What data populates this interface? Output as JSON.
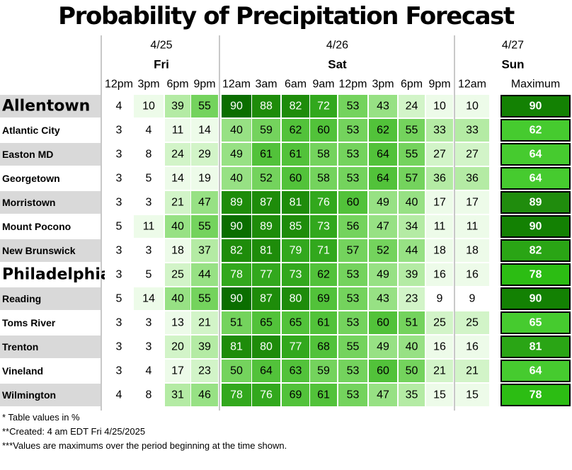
{
  "chart_data": {
    "type": "table",
    "title": "Probability of Precipitation Forecast",
    "dates": [
      {
        "date": "4/25",
        "day": "Fri",
        "span": 4
      },
      {
        "date": "4/26",
        "day": "Sat",
        "span": 8
      },
      {
        "date": "4/27",
        "day": "Sun",
        "span": 1
      }
    ],
    "times": [
      "12pm",
      "3pm",
      "6pm",
      "9pm",
      "12am",
      "3am",
      "6am",
      "9am",
      "12pm",
      "3pm",
      "6pm",
      "9pm",
      "12am"
    ],
    "max_label": "Maximum",
    "rows": [
      {
        "name": "Allentown",
        "large": true,
        "values": [
          4,
          10,
          39,
          55,
          90,
          88,
          82,
          72,
          53,
          43,
          24,
          10,
          10
        ],
        "max": 90
      },
      {
        "name": "Atlantic City",
        "large": false,
        "values": [
          3,
          4,
          11,
          14,
          40,
          59,
          62,
          60,
          53,
          62,
          55,
          33,
          33
        ],
        "max": 62
      },
      {
        "name": "Easton MD",
        "large": false,
        "values": [
          3,
          8,
          24,
          29,
          49,
          61,
          61,
          58,
          53,
          64,
          55,
          27,
          27
        ],
        "max": 64
      },
      {
        "name": "Georgetown",
        "large": false,
        "values": [
          3,
          5,
          14,
          19,
          40,
          52,
          60,
          58,
          53,
          64,
          57,
          36,
          36
        ],
        "max": 64
      },
      {
        "name": "Morristown",
        "large": false,
        "values": [
          3,
          3,
          21,
          47,
          89,
          87,
          81,
          76,
          60,
          49,
          40,
          17,
          17
        ],
        "max": 89
      },
      {
        "name": "Mount Pocono",
        "large": false,
        "values": [
          5,
          11,
          40,
          55,
          90,
          89,
          85,
          73,
          56,
          47,
          34,
          11,
          11
        ],
        "max": 90
      },
      {
        "name": "New Brunswick",
        "large": false,
        "values": [
          3,
          3,
          18,
          37,
          82,
          81,
          79,
          71,
          57,
          52,
          44,
          18,
          18
        ],
        "max": 82
      },
      {
        "name": "Philadelphia",
        "large": true,
        "values": [
          3,
          5,
          25,
          44,
          78,
          77,
          73,
          62,
          53,
          49,
          39,
          16,
          16
        ],
        "max": 78
      },
      {
        "name": "Reading",
        "large": false,
        "values": [
          5,
          14,
          40,
          55,
          90,
          87,
          80,
          69,
          53,
          43,
          23,
          9,
          9
        ],
        "max": 90
      },
      {
        "name": "Toms River",
        "large": false,
        "values": [
          3,
          3,
          13,
          21,
          51,
          65,
          65,
          61,
          53,
          60,
          51,
          25,
          25
        ],
        "max": 65
      },
      {
        "name": "Trenton",
        "large": false,
        "values": [
          3,
          3,
          20,
          39,
          81,
          80,
          77,
          68,
          55,
          49,
          40,
          16,
          16
        ],
        "max": 81
      },
      {
        "name": "Vineland",
        "large": false,
        "values": [
          3,
          4,
          17,
          23,
          50,
          64,
          63,
          59,
          53,
          60,
          50,
          21,
          21
        ],
        "max": 64
      },
      {
        "name": "Wilmington",
        "large": false,
        "values": [
          4,
          8,
          31,
          46,
          78,
          76,
          69,
          61,
          53,
          47,
          35,
          15,
          15
        ],
        "max": 78
      }
    ],
    "color_scale": [
      {
        "min": 0,
        "color": "#ffffff"
      },
      {
        "min": 10,
        "color": "#edfbe9"
      },
      {
        "min": 20,
        "color": "#d2f4c8"
      },
      {
        "min": 30,
        "color": "#b4eba4"
      },
      {
        "min": 40,
        "color": "#97e184"
      },
      {
        "min": 50,
        "color": "#74d35d"
      },
      {
        "min": 60,
        "color": "#52c23a"
      },
      {
        "min": 70,
        "color": "#32a81d"
      },
      {
        "min": 80,
        "color": "#1e8c0a"
      },
      {
        "min": 90,
        "color": "#0b6e00"
      }
    ],
    "max_color_scale": [
      {
        "min": 0,
        "color": "#ffffff"
      },
      {
        "min": 60,
        "color": "#46cb2f"
      },
      {
        "min": 70,
        "color": "#2cbd13"
      },
      {
        "min": 80,
        "color": "#2aa515"
      },
      {
        "min": 85,
        "color": "#208c0d"
      },
      {
        "min": 90,
        "color": "#138103"
      }
    ],
    "label_bg": "#d9d9d9",
    "dark_text_threshold": 70
  },
  "notes": [
    "* Table values in %",
    "**Created: 4 am EDT Fri 4/25/2025",
    "***Values are maximums over the period beginning at the time shown."
  ]
}
